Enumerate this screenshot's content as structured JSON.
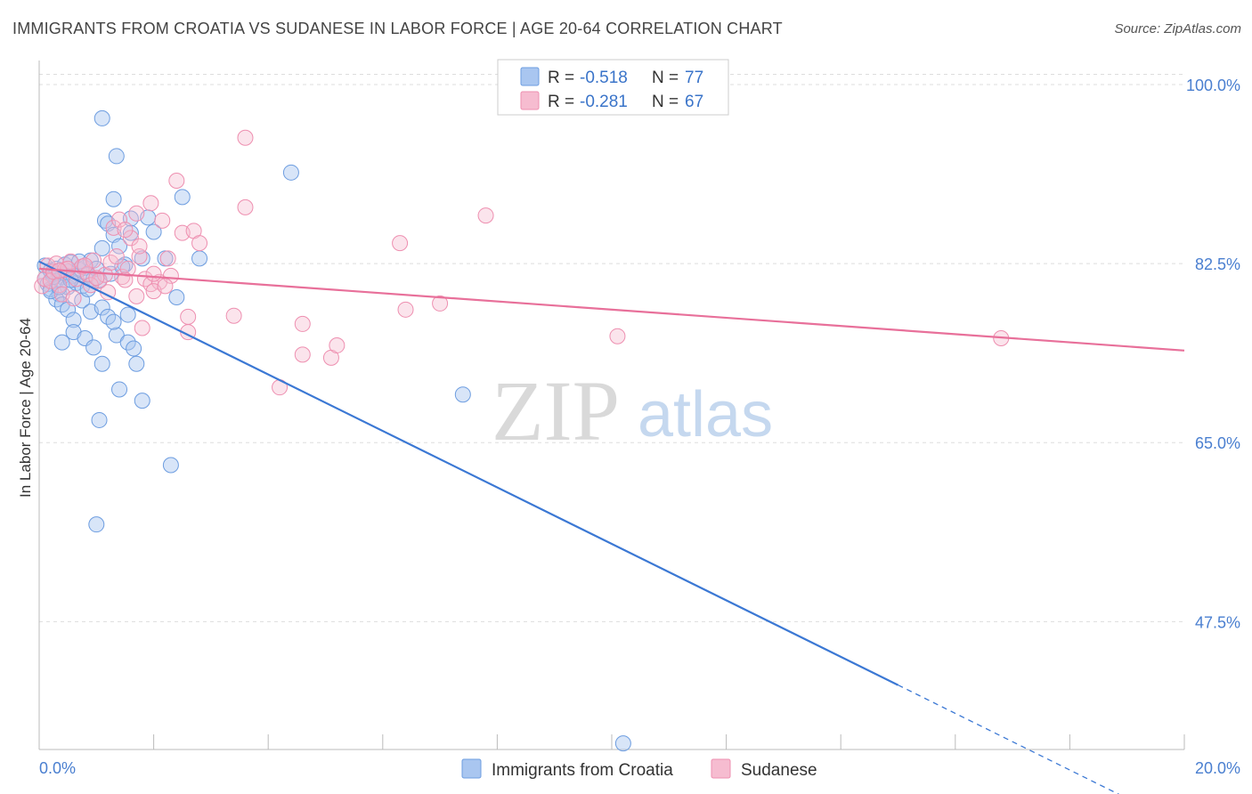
{
  "header": {
    "title": "IMMIGRANTS FROM CROATIA VS SUDANESE IN LABOR FORCE | AGE 20-64 CORRELATION CHART",
    "source": "Source: ZipAtlas.com"
  },
  "watermark": {
    "zip": "ZIP",
    "atlas": "atlas"
  },
  "legend_top": [
    {
      "r_label": "R =",
      "r_value": "-0.518",
      "n_label": "N =",
      "n_value": "77",
      "color": "#a9c6f0",
      "stroke": "#6d9de0"
    },
    {
      "r_label": "R =",
      "r_value": "-0.281",
      "n_label": "N =",
      "n_value": "67",
      "color": "#f6bcd0",
      "stroke": "#ee8fb0"
    }
  ],
  "chart_data": {
    "type": "scatter",
    "title": "IMMIGRANTS FROM CROATIA VS SUDANESE IN LABOR FORCE | AGE 20-64 CORRELATION CHART",
    "xlabel": "",
    "ylabel": "In Labor Force | Age 20-64",
    "xlim": [
      0,
      20
    ],
    "ylim": [
      35,
      102
    ],
    "x_tick_labels": [
      "0.0%",
      "20.0%"
    ],
    "y_ticks": [
      47.5,
      65.0,
      82.5,
      100.0
    ],
    "y_tick_labels": [
      "47.5%",
      "65.0%",
      "82.5%",
      "100.0%"
    ],
    "grid": true,
    "legend_position": "bottom",
    "colors": {
      "croatia": "#3b78d4",
      "sudanese": "#e8709a"
    },
    "series": [
      {
        "name": "Immigrants from Croatia",
        "trend": {
          "x": [
            0,
            15
          ],
          "y": [
            82.7,
            41.3
          ],
          "dashed_to": [
            18.9,
            30.5
          ]
        },
        "points": [
          [
            0.1,
            82.3
          ],
          [
            0.1,
            81.0
          ],
          [
            0.15,
            80.5
          ],
          [
            0.2,
            81.8
          ],
          [
            0.2,
            80.0
          ],
          [
            0.25,
            81.5
          ],
          [
            0.3,
            82.0
          ],
          [
            0.3,
            80.8
          ],
          [
            0.35,
            79.5
          ],
          [
            0.4,
            81.2
          ],
          [
            0.45,
            82.4
          ],
          [
            0.5,
            80.2
          ],
          [
            0.5,
            81.7
          ],
          [
            0.55,
            82.6
          ],
          [
            0.6,
            81.3
          ],
          [
            0.65,
            80.6
          ],
          [
            0.7,
            81.9
          ],
          [
            0.75,
            80.3
          ],
          [
            0.8,
            82.1
          ],
          [
            0.85,
            81.4
          ],
          [
            0.9,
            82.8
          ],
          [
            0.95,
            81.0
          ],
          [
            1.0,
            82.0
          ],
          [
            1.05,
            80.9
          ],
          [
            0.3,
            79.0
          ],
          [
            0.4,
            78.5
          ],
          [
            0.5,
            78.0
          ],
          [
            0.6,
            77.0
          ],
          [
            0.75,
            78.9
          ],
          [
            0.9,
            77.8
          ],
          [
            1.1,
            78.2
          ],
          [
            1.2,
            77.3
          ],
          [
            0.4,
            74.8
          ],
          [
            0.6,
            75.8
          ],
          [
            0.8,
            75.2
          ],
          [
            0.95,
            74.3
          ],
          [
            1.35,
            75.5
          ],
          [
            1.55,
            74.8
          ],
          [
            1.65,
            74.2
          ],
          [
            1.7,
            72.7
          ],
          [
            1.1,
            72.7
          ],
          [
            1.4,
            70.2
          ],
          [
            1.8,
            69.1
          ],
          [
            1.05,
            67.2
          ],
          [
            1.3,
            76.8
          ],
          [
            1.55,
            77.5
          ],
          [
            2.3,
            62.8
          ],
          [
            1.0,
            57.0
          ],
          [
            1.1,
            96.7
          ],
          [
            1.35,
            93.0
          ],
          [
            1.3,
            88.8
          ],
          [
            2.5,
            89.0
          ],
          [
            1.15,
            86.7
          ],
          [
            1.6,
            86.9
          ],
          [
            1.9,
            87.0
          ],
          [
            2.0,
            85.6
          ],
          [
            1.2,
            86.4
          ],
          [
            1.3,
            85.3
          ],
          [
            1.6,
            85.5
          ],
          [
            1.4,
            84.2
          ],
          [
            1.1,
            84.0
          ],
          [
            1.8,
            83.0
          ],
          [
            2.8,
            83.0
          ],
          [
            1.5,
            82.4
          ],
          [
            2.4,
            79.2
          ],
          [
            2.2,
            83.0
          ],
          [
            4.4,
            91.4
          ],
          [
            7.4,
            69.7
          ],
          [
            10.2,
            35.6
          ],
          [
            0.2,
            79.8
          ],
          [
            0.35,
            80.2
          ],
          [
            0.55,
            80.9
          ],
          [
            0.7,
            82.7
          ],
          [
            0.85,
            80.0
          ],
          [
            1.25,
            81.5
          ],
          [
            1.45,
            82.2
          ],
          [
            0.25,
            81.2
          ]
        ]
      },
      {
        "name": "Sudanese",
        "trend": {
          "x": [
            0,
            20
          ],
          "y": [
            82.0,
            74.0
          ]
        },
        "points": [
          [
            0.05,
            80.3
          ],
          [
            0.1,
            81.0
          ],
          [
            0.15,
            82.3
          ],
          [
            0.2,
            80.8
          ],
          [
            0.25,
            81.7
          ],
          [
            0.3,
            82.5
          ],
          [
            0.35,
            80.4
          ],
          [
            0.45,
            81.9
          ],
          [
            0.55,
            82.7
          ],
          [
            0.65,
            81.0
          ],
          [
            0.75,
            82.2
          ],
          [
            0.85,
            81.5
          ],
          [
            0.95,
            82.8
          ],
          [
            1.05,
            80.8
          ],
          [
            1.15,
            81.4
          ],
          [
            1.25,
            82.6
          ],
          [
            1.35,
            83.2
          ],
          [
            1.45,
            81.2
          ],
          [
            1.55,
            82.0
          ],
          [
            1.75,
            83.2
          ],
          [
            1.85,
            81.0
          ],
          [
            1.95,
            80.5
          ],
          [
            2.1,
            80.7
          ],
          [
            2.25,
            83.0
          ],
          [
            0.4,
            79.5
          ],
          [
            0.6,
            79.1
          ],
          [
            0.9,
            80.4
          ],
          [
            1.2,
            79.7
          ],
          [
            1.5,
            80.9
          ],
          [
            1.7,
            79.3
          ],
          [
            2.0,
            79.8
          ],
          [
            2.3,
            81.3
          ],
          [
            1.3,
            86.0
          ],
          [
            1.4,
            86.8
          ],
          [
            1.6,
            85.0
          ],
          [
            1.7,
            87.4
          ],
          [
            1.95,
            88.4
          ],
          [
            2.15,
            86.7
          ],
          [
            2.5,
            85.5
          ],
          [
            2.7,
            85.7
          ],
          [
            2.4,
            90.6
          ],
          [
            3.6,
            94.8
          ],
          [
            3.6,
            88.0
          ],
          [
            2.8,
            84.5
          ],
          [
            2.6,
            77.3
          ],
          [
            3.4,
            77.4
          ],
          [
            1.8,
            76.2
          ],
          [
            2.6,
            75.8
          ],
          [
            4.6,
            76.6
          ],
          [
            5.1,
            73.3
          ],
          [
            5.2,
            74.5
          ],
          [
            4.2,
            70.4
          ],
          [
            4.6,
            73.6
          ],
          [
            6.3,
            84.5
          ],
          [
            6.4,
            78.0
          ],
          [
            7.0,
            78.6
          ],
          [
            7.8,
            87.2
          ],
          [
            10.1,
            75.4
          ],
          [
            16.8,
            75.2
          ],
          [
            1.5,
            85.8
          ],
          [
            1.75,
            84.2
          ],
          [
            0.5,
            82.0
          ],
          [
            0.8,
            82.3
          ],
          [
            1.0,
            81.1
          ],
          [
            2.0,
            81.5
          ],
          [
            2.2,
            80.3
          ],
          [
            0.35,
            81.8
          ]
        ]
      }
    ]
  },
  "legend_bottom": {
    "items": [
      {
        "label": "Immigrants from Croatia",
        "color": "#a9c6f0",
        "stroke": "#6d9de0"
      },
      {
        "label": "Sudanese",
        "color": "#f6bcd0",
        "stroke": "#ee8fb0"
      }
    ]
  }
}
